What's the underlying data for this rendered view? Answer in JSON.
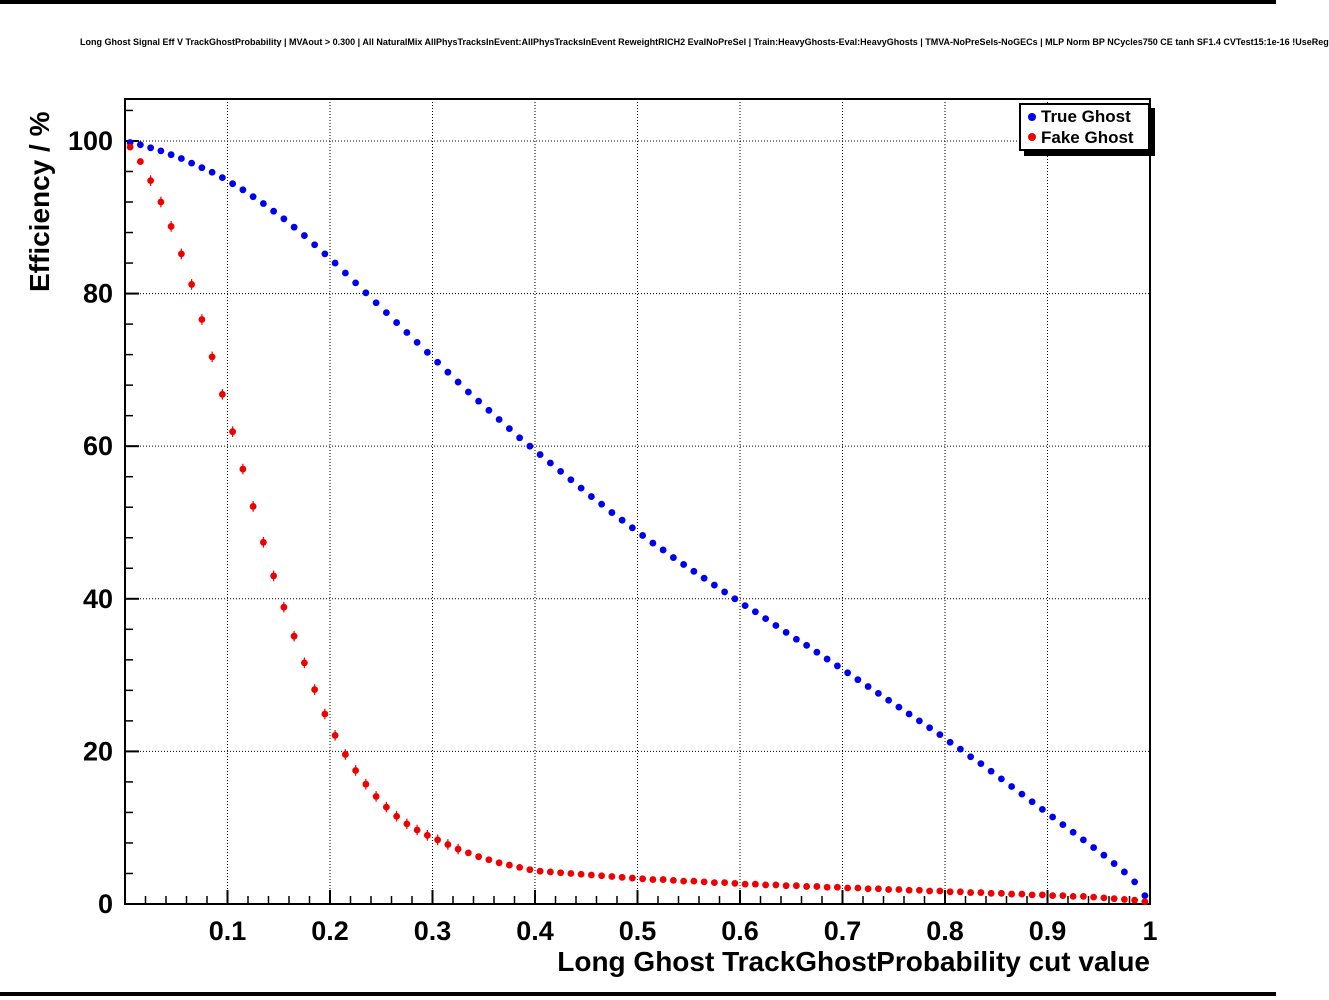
{
  "chart_data": {
    "type": "scatter",
    "title": "Long Ghost Signal Eff V TrackGhostProbability | MVAout > 0.300 | All NaturalMix AllPhysTracksInEvent:AllPhysTracksInEvent ReweightRICH2 EvalNoPreSel | Train:HeavyGhosts-Eval:HeavyGhosts | TMVA-NoPreSels-NoGECs | MLP Norm BP NCycles750 CE tanh SF1.4 CVTest15:1e-16 !UseReg",
    "xlabel": "Long Ghost TrackGhostProbability cut value",
    "ylabel": "Efficiency / %",
    "xlim": [
      0,
      1
    ],
    "ylim": [
      0,
      105.5
    ],
    "grid": "dotted-major",
    "legend_position": "top-right",
    "x_ticks": [
      0.1,
      0.2,
      0.3,
      0.4,
      0.5,
      0.6,
      0.7,
      0.8,
      0.9,
      1
    ],
    "x_tick_labels": [
      "0.1",
      "0.2",
      "0.3",
      "0.4",
      "0.5",
      "0.6",
      "0.7",
      "0.8",
      "0.9",
      "1"
    ],
    "x_minor_step": 0.02,
    "y_ticks": [
      0,
      20,
      40,
      60,
      80,
      100
    ],
    "y_tick_labels": [
      "0",
      "20",
      "40",
      "60",
      "80",
      "100"
    ],
    "y_minor_step": 4,
    "x_start": 0.005,
    "x_step": 0.01,
    "series": [
      {
        "name": "True Ghost",
        "color": "#0000f0",
        "marker": "full-circle",
        "error_bars": false,
        "y": [
          99.8,
          99.5,
          99.1,
          98.7,
          98.2,
          97.7,
          97.1,
          96.5,
          95.9,
          95.2,
          94.4,
          93.6,
          92.7,
          91.8,
          90.8,
          89.8,
          88.7,
          87.6,
          86.4,
          85.2,
          84.0,
          82.7,
          81.4,
          80.1,
          78.8,
          77.5,
          76.2,
          74.9,
          73.6,
          72.3,
          71.0,
          69.7,
          68.4,
          67.1,
          65.9,
          64.7,
          63.5,
          62.3,
          61.1,
          60.0,
          58.9,
          57.8,
          56.7,
          55.6,
          54.5,
          53.4,
          52.4,
          51.3,
          50.3,
          49.3,
          48.3,
          47.3,
          46.4,
          45.4,
          44.5,
          43.6,
          42.7,
          41.8,
          40.9,
          40.0,
          39.1,
          38.3,
          37.4,
          36.5,
          35.6,
          34.7,
          33.9,
          33.0,
          32.1,
          31.2,
          30.3,
          29.4,
          28.5,
          27.6,
          26.7,
          25.8,
          24.9,
          24.0,
          23.1,
          22.2,
          21.2,
          20.3,
          19.3,
          18.4,
          17.4,
          16.4,
          15.4,
          14.4,
          13.4,
          12.4,
          11.4,
          10.4,
          9.4,
          8.4,
          7.4,
          6.4,
          5.3,
          4.2,
          2.9,
          1.1
        ]
      },
      {
        "name": "Fake Ghost",
        "color": "#f00000",
        "marker": "full-circle",
        "error_bars": true,
        "y": [
          99.2,
          97.3,
          94.8,
          92.0,
          88.8,
          85.2,
          81.2,
          76.6,
          71.7,
          66.8,
          61.9,
          57.0,
          52.1,
          47.4,
          43.0,
          38.9,
          35.1,
          31.6,
          28.1,
          24.9,
          22.1,
          19.6,
          17.5,
          15.7,
          14.1,
          12.7,
          11.5,
          10.5,
          9.7,
          9.0,
          8.4,
          7.8,
          7.2,
          6.7,
          6.2,
          5.8,
          5.4,
          5.1,
          4.8,
          4.5,
          4.3,
          4.2,
          4.1,
          4.0,
          3.9,
          3.8,
          3.7,
          3.6,
          3.5,
          3.4,
          3.3,
          3.2,
          3.2,
          3.1,
          3.0,
          3.0,
          2.9,
          2.8,
          2.8,
          2.7,
          2.6,
          2.6,
          2.5,
          2.5,
          2.4,
          2.4,
          2.3,
          2.3,
          2.2,
          2.2,
          2.1,
          2.1,
          2.0,
          2.0,
          1.9,
          1.9,
          1.8,
          1.8,
          1.7,
          1.7,
          1.6,
          1.6,
          1.5,
          1.5,
          1.4,
          1.4,
          1.3,
          1.3,
          1.2,
          1.2,
          1.1,
          1.1,
          1.0,
          1.0,
          0.9,
          0.8,
          0.7,
          0.6,
          0.5,
          0.3
        ]
      }
    ]
  }
}
